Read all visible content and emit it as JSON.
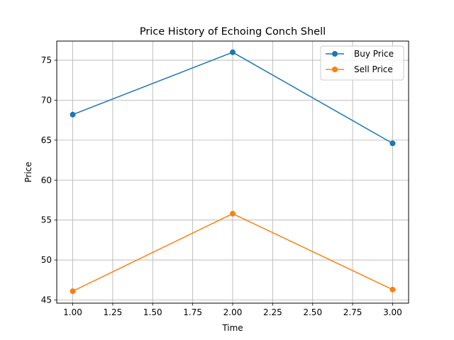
{
  "chart_data": {
    "type": "line",
    "title": "Price History of Echoing Conch Shell",
    "xlabel": "Time",
    "ylabel": "Price",
    "x": [
      1.0,
      2.0,
      3.0
    ],
    "series": [
      {
        "name": "Buy Price",
        "color": "#1f77b4",
        "values": [
          68.2,
          76.0,
          64.6
        ]
      },
      {
        "name": "Sell Price",
        "color": "#ff7f0e",
        "values": [
          46.1,
          55.8,
          46.3
        ]
      }
    ],
    "xlim": [
      0.9,
      3.1
    ],
    "ylim": [
      44.6,
      77.4
    ],
    "xticks": [
      "1.00",
      "1.25",
      "1.50",
      "1.75",
      "2.00",
      "2.25",
      "2.50",
      "2.75",
      "3.00"
    ],
    "yticks": [
      "45",
      "50",
      "55",
      "60",
      "65",
      "70",
      "75"
    ],
    "grid": true,
    "legend_position": "top-right"
  }
}
